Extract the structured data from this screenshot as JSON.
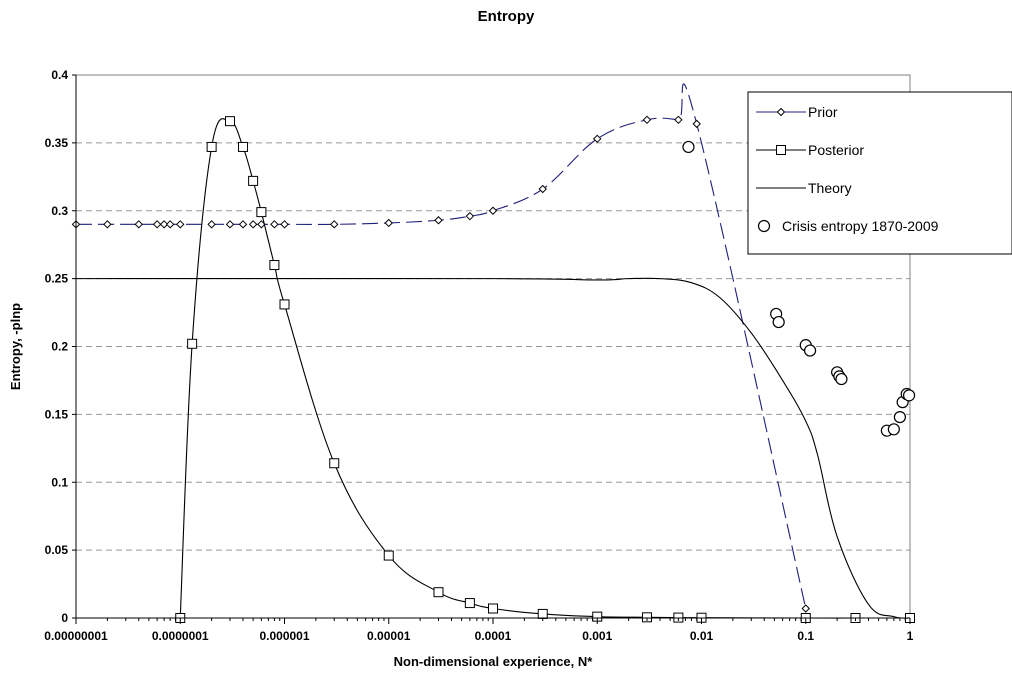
{
  "chart_data": {
    "type": "line",
    "title": "Entropy",
    "xlabel": "Non-dimensional experience, N*",
    "ylabel": "Entropy, -plnp",
    "x_scale": "log",
    "xlim": [
      1e-08,
      1
    ],
    "ylim": [
      0,
      0.4
    ],
    "grid": true,
    "legend_position": "top-right",
    "x_tick_labels": [
      "0.00000001",
      "0.0000001",
      "0.000001",
      "0.00001",
      "0.0001",
      "0.001",
      "0.01",
      "0.1",
      "1"
    ],
    "y_tick_labels": [
      "0",
      "0.05",
      "0.1",
      "0.15",
      "0.2",
      "0.25",
      "0.3",
      "0.35",
      "0.4"
    ],
    "series": [
      {
        "name": "Prior",
        "marker": "diamond",
        "line": "long-dash",
        "color": "#1f1f7a",
        "x": [
          1e-08,
          2e-08,
          4e-08,
          6e-08,
          7e-08,
          8e-08,
          1e-07,
          2e-07,
          3e-07,
          4e-07,
          5e-07,
          6e-07,
          8e-07,
          1e-06,
          3e-06,
          1e-05,
          3e-05,
          6e-05,
          0.0001,
          0.0003,
          0.001,
          0.003,
          0.006,
          0.009,
          0.1
        ],
        "y": [
          0.29,
          0.29,
          0.29,
          0.29,
          0.29,
          0.29,
          0.29,
          0.29,
          0.29,
          0.29,
          0.29,
          0.29,
          0.29,
          0.29,
          0.29,
          0.291,
          0.293,
          0.296,
          0.3,
          0.316,
          0.353,
          0.367,
          0.367,
          0.364,
          0.007
        ]
      },
      {
        "name": "Posterior",
        "marker": "square",
        "line": "solid",
        "color": "#000000",
        "x": [
          1e-07,
          1.3e-07,
          2e-07,
          3e-07,
          4e-07,
          5e-07,
          6e-07,
          8e-07,
          1e-06,
          3e-06,
          1e-05,
          3e-05,
          6e-05,
          0.0001,
          0.0003,
          0.001,
          0.003,
          0.006,
          0.01,
          0.1,
          0.3,
          1
        ],
        "y": [
          0.0,
          0.202,
          0.347,
          0.366,
          0.347,
          0.322,
          0.299,
          0.26,
          0.231,
          0.114,
          0.046,
          0.019,
          0.011,
          0.007,
          0.003,
          0.001,
          0.0005,
          0.0003,
          0.0002,
          0.0,
          0.0,
          0.0
        ]
      },
      {
        "name": "Theory",
        "marker": "none",
        "line": "solid",
        "color": "#000000",
        "x": [
          1e-08,
          0.0001,
          0.001,
          0.002,
          0.004,
          0.008,
          0.015,
          0.03,
          0.06,
          0.1,
          0.13,
          0.2,
          0.4,
          0.7,
          1
        ],
        "y": [
          0.25,
          0.25,
          0.249,
          0.25,
          0.25,
          0.247,
          0.236,
          0.21,
          0.175,
          0.145,
          0.12,
          0.06,
          0.01,
          0.001,
          0.0
        ]
      },
      {
        "name": "Crisis entropy 1870-2009",
        "marker": "circle",
        "line": "none",
        "color": "#000000",
        "x": [
          0.0075,
          0.052,
          0.055,
          0.1,
          0.11,
          0.2,
          0.21,
          0.22,
          0.6,
          0.7,
          0.8,
          0.85,
          0.93,
          0.98
        ],
        "y": [
          0.347,
          0.224,
          0.218,
          0.201,
          0.197,
          0.181,
          0.178,
          0.176,
          0.138,
          0.139,
          0.148,
          0.159,
          0.165,
          0.164
        ]
      }
    ]
  }
}
